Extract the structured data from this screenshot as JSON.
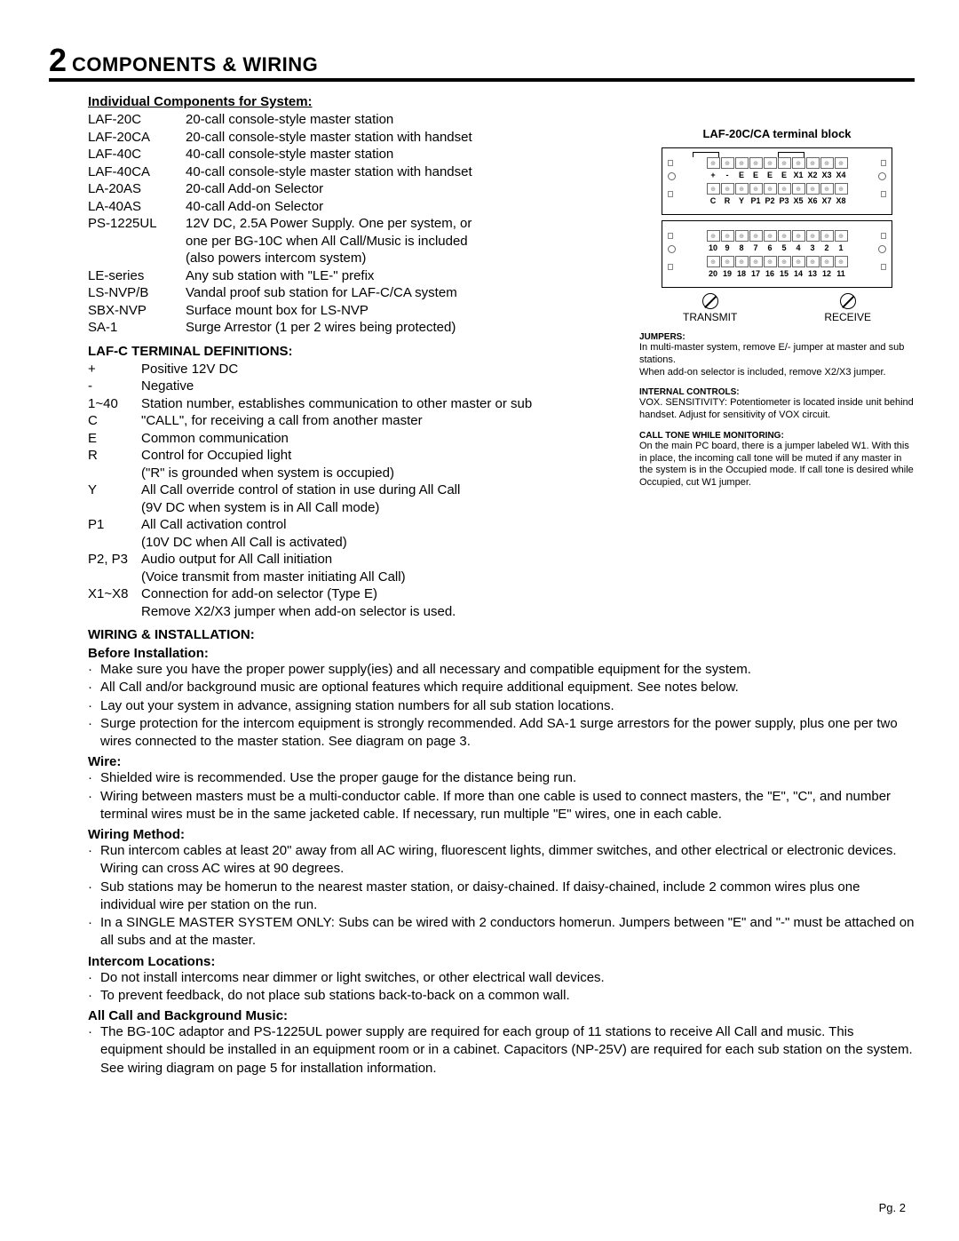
{
  "title_num": "2",
  "title": "COMPONENTS & WIRING",
  "components_heading": "Individual Components for System:",
  "components": [
    {
      "code": "LAF-20C",
      "desc": "20-call console-style master station"
    },
    {
      "code": "LAF-20CA",
      "desc": "20-call console-style master station with handset"
    },
    {
      "code": "LAF-40C",
      "desc": "40-call console-style master station"
    },
    {
      "code": "LAF-40CA",
      "desc": "40-call console-style master station with handset"
    },
    {
      "code": "LA-20AS",
      "desc": "20-call Add-on Selector"
    },
    {
      "code": "LA-40AS",
      "desc": "40-call Add-on Selector"
    },
    {
      "code": "PS-1225UL",
      "desc": "12V DC, 2.5A Power Supply. One per system, or",
      "cont": [
        "one per BG-10C when All Call/Music is included",
        "(also powers intercom system)"
      ]
    },
    {
      "code": "LE-series",
      "desc": "Any sub station with \"LE-\" prefix"
    },
    {
      "code": "LS-NVP/B",
      "desc": "Vandal proof sub station for LAF-C/CA system"
    },
    {
      "code": "SBX-NVP",
      "desc": "Surface mount box for LS-NVP"
    },
    {
      "code": "SA-1",
      "desc": "Surge Arrestor (1 per 2 wires being protected)"
    }
  ],
  "terminal_heading": "LAF-C TERMINAL DEFINITIONS:",
  "definitions": [
    {
      "code": "+",
      "desc": "Positive 12V DC"
    },
    {
      "code": "-",
      "desc": "Negative"
    },
    {
      "code": "1~40",
      "desc": "Station number, establishes communication to other master or sub"
    },
    {
      "code": "C",
      "desc": "\"CALL\", for receiving a call from another master"
    },
    {
      "code": "E",
      "desc": "Common communication"
    },
    {
      "code": "R",
      "desc": "Control for Occupied light",
      "cont": [
        "(\"R\" is grounded when system is occupied)"
      ]
    },
    {
      "code": "Y",
      "desc": "All Call override control of station in use during All Call",
      "cont": [
        "(9V DC when system is in All Call mode)"
      ]
    },
    {
      "code": "P1",
      "desc": "All Call activation control",
      "cont": [
        "(10V DC when All Call is activated)"
      ]
    },
    {
      "code": "P2, P3",
      "desc": "Audio output for All Call initiation",
      "cont": [
        "(Voice transmit from master initiating All Call)"
      ]
    },
    {
      "code": "X1~X8",
      "desc": "Connection for add-on selector (Type E)",
      "cont": [
        "Remove X2/X3 jumper when add-on selector is used."
      ]
    }
  ],
  "wiring_heading": "WIRING & INSTALLATION:",
  "before_heading": "Before Installation:",
  "before_bullets": [
    "Make sure you have the proper power supply(ies) and all necessary and compatible equipment for the system.",
    "All Call and/or background music are optional features which require additional equipment.  See notes below.",
    "Lay out your system in advance, assigning station numbers for all sub station locations.",
    "Surge protection for the intercom equipment is strongly recommended.  Add SA-1 surge arrestors for the power supply, plus one per two wires connected to the master station.  See diagram on page 3."
  ],
  "wire_heading": "Wire:",
  "wire_bullets": [
    "Shielded wire is recommended.  Use the proper gauge for the distance being run.",
    "Wiring between masters must be a multi-conductor cable.  If more than one cable is used to connect masters, the \"E\", \"C\", and number terminal wires must be in the same jacketed cable.  If necessary, run multiple \"E\" wires, one in each cable."
  ],
  "method_heading": "Wiring Method:",
  "method_bullets": [
    "Run intercom cables at least 20\" away from all AC wiring, fluorescent lights, dimmer switches, and other electrical or electronic devices.  Wiring can cross AC wires at 90 degrees.",
    "Sub stations may be homerun to the nearest master station, or daisy-chained.  If daisy-chained, include 2 common wires plus one individual wire per station on the run.",
    "In a SINGLE MASTER SYSTEM ONLY: Subs can be wired with 2 conductors homerun.  Jumpers between \"E\" and \"-\" must be attached on all subs and at the master."
  ],
  "locations_heading": "Intercom Locations:",
  "locations_bullets": [
    "Do not install intercoms near dimmer or light switches, or other electrical wall devices.",
    "To prevent feedback, do not place sub stations back-to-back on a common wall."
  ],
  "allcall_heading": "All Call and Background Music:",
  "allcall_bullets": [
    "The BG-10C adaptor and PS-1225UL power supply are required for each group of 11 stations to receive All Call and music. This equipment should be installed in an equipment room or in a cabinet. Capacitors (NP-25V) are required for each sub station on the system. See wiring diagram on page 5 for installation information."
  ],
  "page_num": "Pg. 2",
  "terminal_block": {
    "title": "LAF-20C/CA terminal block",
    "row1_labels": [
      "+",
      "-",
      "E",
      "E",
      "E",
      "E",
      "X1",
      "X2",
      "X3",
      "X4"
    ],
    "row2_labels": [
      "C",
      "R",
      "Y",
      "P1",
      "P2",
      "P3",
      "X5",
      "X6",
      "X7",
      "X8"
    ],
    "row3_labels": [
      "10",
      "9",
      "8",
      "7",
      "6",
      "5",
      "4",
      "3",
      "2",
      "1"
    ],
    "row4_labels": [
      "20",
      "19",
      "18",
      "17",
      "16",
      "15",
      "14",
      "13",
      "12",
      "11"
    ],
    "transmit": "TRANSMIT",
    "receive": "RECEIVE"
  },
  "jumpers_heading": "JUMPERS:",
  "jumpers_text1": "In multi-master system, remove E/- jumper at master and sub stations.",
  "jumpers_text2": "When add-on selector is included, remove X2/X3 jumper.",
  "internal_heading": "INTERNAL CONTROLS:",
  "internal_text": "VOX. SENSITIVITY:  Potentiometer is located inside unit behind handset.  Adjust for sensitivity of VOX circuit.",
  "calltone_heading": "CALL TONE WHILE MONITORING:",
  "calltone_text": "On the main PC board, there is a jumper labeled W1.  With this in place, the incoming call tone will be muted if any master in the system is in the Occupied mode. If call tone is desired while Occupied, cut W1 jumper."
}
